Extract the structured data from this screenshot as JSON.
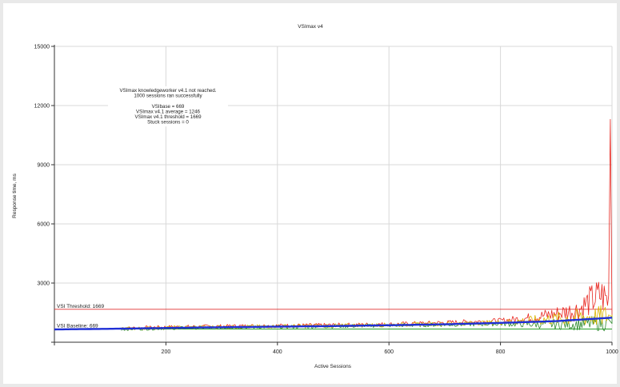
{
  "chart_data": {
    "type": "line",
    "title": "VSImax v4",
    "xlabel": "Active Sessions",
    "ylabel": "Response time, ms",
    "xlim": [
      0,
      1000
    ],
    "ylim": [
      0,
      15000
    ],
    "x_ticks": [
      200,
      400,
      600,
      800,
      1000
    ],
    "y_ticks": [
      3000,
      6000,
      9000,
      12000,
      15000
    ],
    "grid": true,
    "summary": {
      "lines": [
        "VSImax knowledgeworker v4.1 not reached.",
        "1000 sessions ran successfully",
        "",
        "VSIbase = 669",
        "VSImax v4.1 average = 1246",
        "VSImax v4.1 threshold = 1669",
        "Stuck sessions = 0"
      ]
    },
    "reference_lines": [
      {
        "label": "VSI Threshold: 1669",
        "value": 1669,
        "color": "#e03030"
      },
      {
        "label": "VSI Baseline: 669",
        "value": 669,
        "color": "#2aa02a"
      }
    ],
    "series": [
      {
        "color": "#e8261f",
        "style": "noisy",
        "points": [
          [
            120,
            700
          ],
          [
            200,
            760
          ],
          [
            300,
            800
          ],
          [
            400,
            830
          ],
          [
            500,
            860
          ],
          [
            600,
            900
          ],
          [
            700,
            980
          ],
          [
            800,
            1080
          ],
          [
            850,
            1200
          ],
          [
            900,
            1400
          ],
          [
            940,
            1600
          ],
          [
            960,
            2000
          ],
          [
            980,
            2300
          ],
          [
            995,
            2000
          ],
          [
            997,
            11300
          ]
        ]
      },
      {
        "color": "#2d8a2d",
        "style": "noisy",
        "points": [
          [
            120,
            650
          ],
          [
            200,
            700
          ],
          [
            300,
            740
          ],
          [
            400,
            770
          ],
          [
            500,
            800
          ],
          [
            600,
            840
          ],
          [
            700,
            880
          ],
          [
            800,
            920
          ],
          [
            850,
            900
          ],
          [
            900,
            880
          ],
          [
            950,
            900
          ],
          [
            1000,
            950
          ]
        ]
      },
      {
        "color": "#d9b400",
        "style": "noisy",
        "points": [
          [
            120,
            680
          ],
          [
            200,
            730
          ],
          [
            300,
            770
          ],
          [
            400,
            800
          ],
          [
            500,
            830
          ],
          [
            600,
            870
          ],
          [
            700,
            930
          ],
          [
            800,
            1000
          ],
          [
            900,
            1150
          ],
          [
            1000,
            1300
          ]
        ]
      },
      {
        "color": "#1f2fd6",
        "style": "smooth",
        "points": [
          [
            0,
            650
          ],
          [
            100,
            680
          ],
          [
            200,
            720
          ],
          [
            300,
            760
          ],
          [
            400,
            790
          ],
          [
            500,
            820
          ],
          [
            600,
            860
          ],
          [
            700,
            910
          ],
          [
            800,
            980
          ],
          [
            900,
            1070
          ],
          [
            1000,
            1246
          ]
        ]
      }
    ]
  }
}
